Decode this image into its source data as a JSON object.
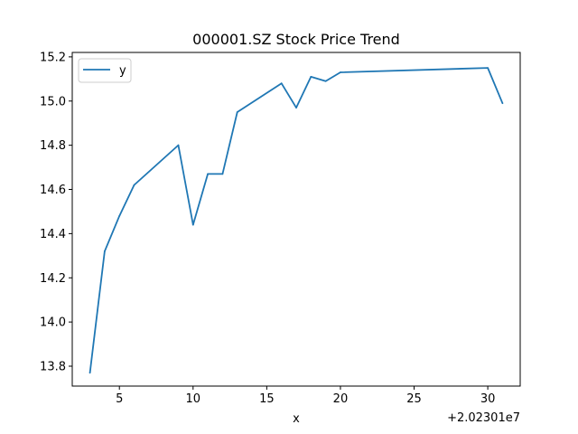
{
  "chart_data": {
    "type": "line",
    "title": "000001.SZ Stock Price Trend",
    "xlabel": "x",
    "ylabel": "",
    "x_offset_label": "+2.02301e7",
    "xlim": [
      1.8,
      32.2
    ],
    "ylim": [
      13.71,
      15.22
    ],
    "x_ticks": [
      5,
      10,
      15,
      20,
      25,
      30
    ],
    "y_ticks": [
      13.8,
      14.0,
      14.2,
      14.4,
      14.6,
      14.8,
      15.0,
      15.2
    ],
    "y_tick_labels": [
      "13.8",
      "14.0",
      "14.2",
      "14.4",
      "14.6",
      "14.8",
      "15.0",
      "15.2"
    ],
    "grid": false,
    "legend_position": "top-left",
    "series": [
      {
        "name": "y",
        "color": "#1f77b4",
        "x": [
          3,
          4,
          5,
          6,
          9,
          10,
          11,
          12,
          13,
          16,
          17,
          18,
          19,
          20,
          30,
          31
        ],
        "y": [
          13.77,
          14.32,
          14.48,
          14.62,
          14.8,
          14.44,
          14.67,
          14.67,
          14.95,
          15.08,
          14.97,
          15.11,
          15.09,
          15.13,
          15.15,
          14.99
        ]
      }
    ]
  }
}
